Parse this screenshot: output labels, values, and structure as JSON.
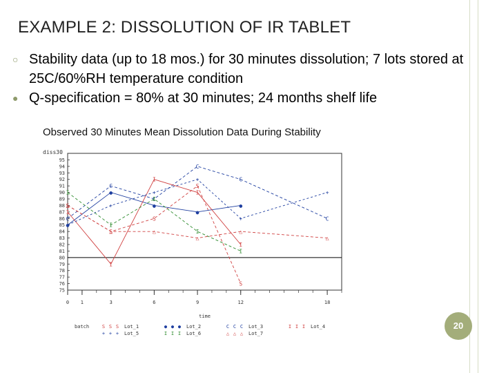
{
  "slide": {
    "title": "EXAMPLE 2: DISSOLUTION OF IR TABLET",
    "bullets": [
      "Stability data (up to 18 mos.) for 30 minutes dissolution; 7 lots stored at 25C/60%RH temperature condition",
      "Q-specification = 80% at 30 minutes; 24 months shelf life"
    ],
    "page_number": "20",
    "accent_color": "#a3ad7a"
  },
  "chart_data": {
    "type": "line",
    "title": "Observed 30 Minutes Mean Dissolution Data During Stability",
    "ylabel": "diss30",
    "xlabel": "time",
    "xlim": [
      0,
      19
    ],
    "ylim": [
      75,
      96
    ],
    "x_tick_labels": [
      "0",
      "1",
      "3",
      "6",
      "9",
      "12",
      "18"
    ],
    "x_ticks": [
      0,
      1,
      3,
      6,
      9,
      12,
      18
    ],
    "y_ticks": [
      75,
      76,
      77,
      78,
      79,
      80,
      81,
      82,
      83,
      84,
      85,
      86,
      87,
      88,
      89,
      90,
      91,
      92,
      93,
      94,
      95
    ],
    "y_tick_labels": [
      "75",
      "76",
      "77",
      "78",
      "79",
      "80",
      "81",
      "82",
      "83",
      "84",
      "85",
      "86",
      "87",
      "88",
      "89",
      "90",
      "91",
      "92",
      "93",
      "94",
      "95"
    ],
    "reference_line": 80,
    "legend_title": "batch",
    "series": [
      {
        "name": "Lot_1",
        "symbol": "S",
        "color": "#d04040",
        "dash": "4,3",
        "x": [
          0,
          3,
          6,
          9,
          12
        ],
        "y": [
          88,
          84,
          86,
          91,
          76
        ]
      },
      {
        "name": "Lot_2",
        "symbol": "●",
        "color": "#1f3fa0",
        "dash": "",
        "x": [
          0,
          3,
          6,
          9,
          12
        ],
        "y": [
          85,
          90,
          88,
          87,
          88
        ]
      },
      {
        "name": "Lot_3",
        "symbol": "C",
        "color": "#1f3fa0",
        "dash": "4,3",
        "x": [
          0,
          3,
          6,
          9,
          12,
          18
        ],
        "y": [
          86,
          91,
          89,
          94,
          92,
          86
        ]
      },
      {
        "name": "Lot_4",
        "symbol": "I",
        "color": "#d04040",
        "dash": "",
        "x": [
          0,
          3,
          6,
          9,
          12
        ],
        "y": [
          87,
          79,
          92,
          90,
          82
        ]
      },
      {
        "name": "Lot_5",
        "symbol": "+",
        "color": "#1f3fa0",
        "dash": "3,3",
        "x": [
          0,
          3,
          6,
          9,
          12,
          18
        ],
        "y": [
          85,
          88,
          90,
          92,
          86,
          90
        ]
      },
      {
        "name": "Lot_6",
        "symbol": "I",
        "color": "#2e8b2e",
        "dash": "4,3",
        "x": [
          0,
          3,
          6,
          9,
          12
        ],
        "y": [
          90,
          85,
          89,
          84,
          81
        ]
      },
      {
        "name": "Lot_7",
        "symbol": "△",
        "color": "#d04040",
        "dash": "4,3",
        "x": [
          0,
          3,
          6,
          9,
          12,
          18
        ],
        "y": [
          88,
          84,
          84,
          83,
          84,
          83
        ]
      }
    ]
  }
}
